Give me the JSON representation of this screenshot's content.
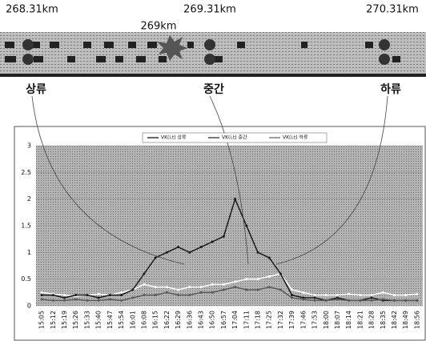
{
  "diagram": {
    "km_labels": [
      "268.31km",
      "269.31km",
      "270.31km"
    ],
    "incident_label": "269km",
    "stations": [
      "상류",
      "중간",
      "하류"
    ]
  },
  "chart_data": {
    "type": "line",
    "categories": [
      "15:05",
      "15:12",
      "15:19",
      "15:26",
      "15:33",
      "15:40",
      "15:47",
      "15:54",
      "16:01",
      "16:08",
      "16:15",
      "16:22",
      "16:29",
      "16:36",
      "16:43",
      "16:50",
      "16:57",
      "17:04",
      "17:11",
      "17:18",
      "17:25",
      "17:32",
      "17:39",
      "17:46",
      "17:53",
      "18:00",
      "18:07",
      "18:14",
      "18:21",
      "18:28",
      "18:35",
      "18:42",
      "18:49",
      "18:56"
    ],
    "series": [
      {
        "name": "VK(i,t) 상류",
        "color": "#ffffff",
        "values": [
          0.25,
          0.22,
          0.2,
          0.18,
          0.2,
          0.22,
          0.2,
          0.25,
          0.3,
          0.4,
          0.35,
          0.35,
          0.3,
          0.35,
          0.35,
          0.4,
          0.4,
          0.45,
          0.5,
          0.5,
          0.55,
          0.6,
          0.3,
          0.25,
          0.2,
          0.2,
          0.2,
          0.22,
          0.2,
          0.2,
          0.25,
          0.2,
          0.2,
          0.22
        ]
      },
      {
        "name": "VK(i,t) 중간",
        "color": "#1a1a1a",
        "values": [
          0.2,
          0.2,
          0.15,
          0.2,
          0.2,
          0.15,
          0.2,
          0.2,
          0.3,
          0.6,
          0.9,
          1.0,
          1.1,
          1.0,
          1.1,
          1.2,
          1.3,
          2.0,
          1.5,
          1.0,
          0.9,
          0.6,
          0.2,
          0.15,
          0.15,
          0.1,
          0.15,
          0.1,
          0.1,
          0.15,
          0.1,
          0.1,
          0.1,
          0.1
        ]
      },
      {
        "name": "VK(i,t) 하류",
        "color": "#5a5a5a",
        "values": [
          0.12,
          0.1,
          0.1,
          0.12,
          0.1,
          0.1,
          0.12,
          0.1,
          0.15,
          0.2,
          0.2,
          0.25,
          0.2,
          0.2,
          0.25,
          0.25,
          0.3,
          0.35,
          0.3,
          0.3,
          0.35,
          0.3,
          0.15,
          0.12,
          0.1,
          0.1,
          0.12,
          0.1,
          0.1,
          0.1,
          0.12,
          0.1,
          0.1,
          0.1
        ]
      }
    ],
    "ylim": [
      0,
      3
    ],
    "yticks": [
      0,
      0.5,
      1,
      1.5,
      2,
      2.5,
      3
    ],
    "grid": true
  }
}
